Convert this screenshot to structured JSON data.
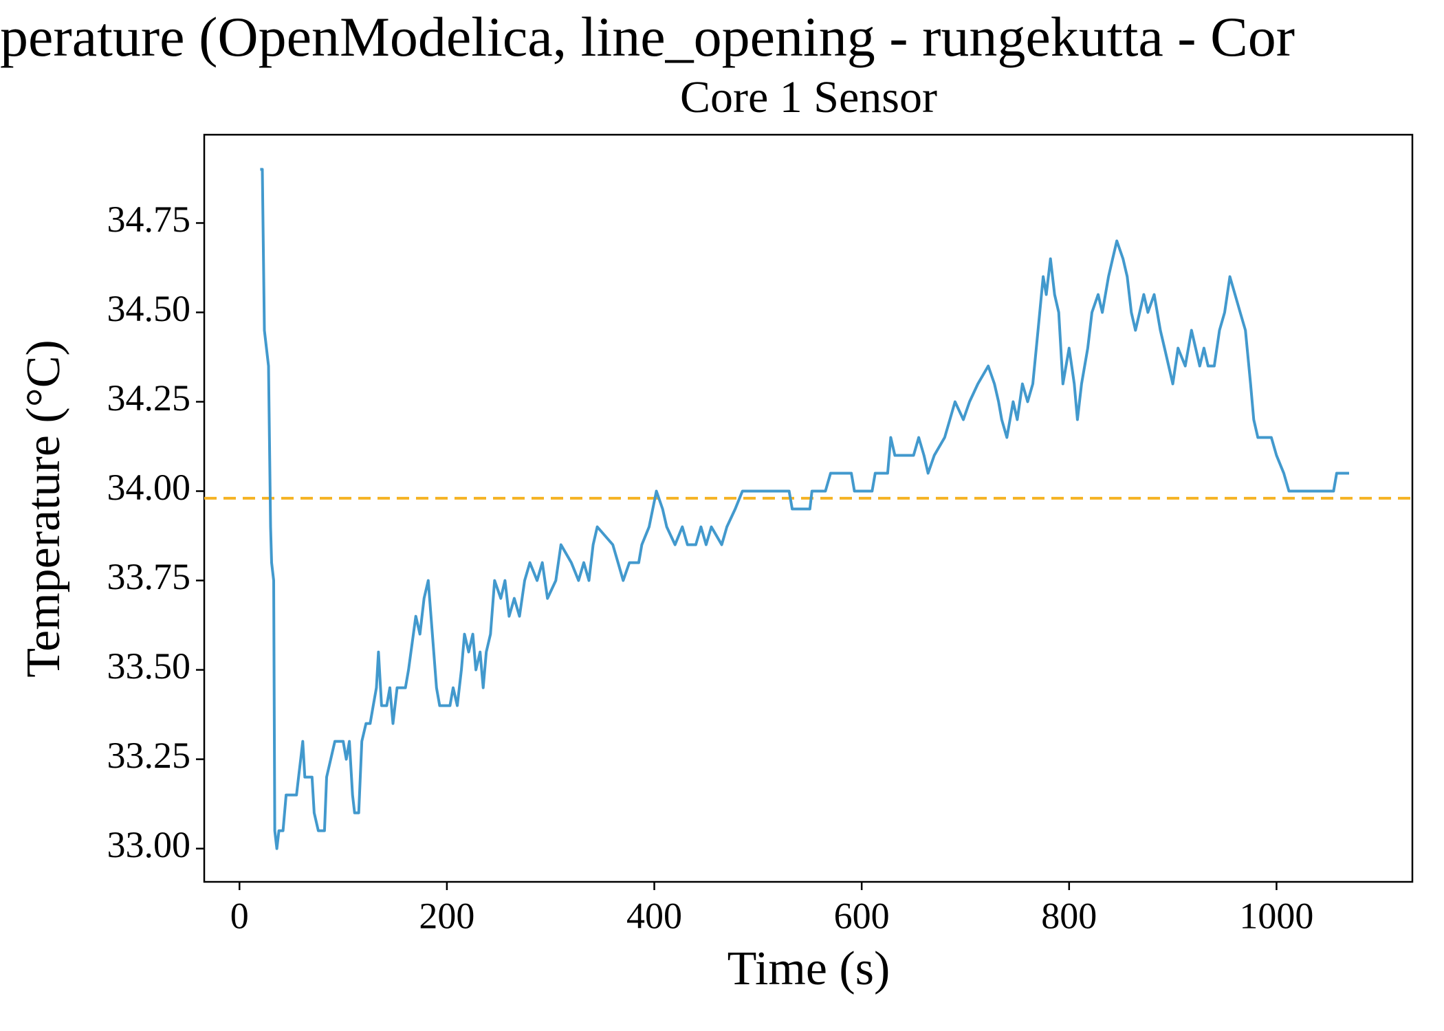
{
  "chart_data": {
    "type": "line",
    "title": "perature (OpenModelica, line_opening - rungekutta - Cor",
    "subtitle": "Core 1 Sensor",
    "xlabel": "Time (s)",
    "ylabel": "Temperature (°C)",
    "xlim": [
      -34,
      1131
    ],
    "ylim": [
      32.907,
      34.997
    ],
    "xticks": [
      0,
      200,
      400,
      600,
      800,
      1000
    ],
    "yticks": [
      {
        "value": 33,
        "label": "33.00"
      },
      33.25,
      {
        "value": 33.5,
        "label": "33.50"
      },
      33.75,
      {
        "value": 34,
        "label": "34.00"
      },
      34.25,
      {
        "value": 34.5,
        "label": "34.50"
      },
      34.75
    ],
    "reference_line": {
      "value": 33.98,
      "color": "#f5b323"
    },
    "series": [
      {
        "color": "#4299cd",
        "x": [
          20,
          22,
          24,
          26,
          28,
          30,
          31,
          33,
          34,
          36,
          38,
          42,
          45,
          55,
          57,
          59,
          61,
          63,
          70,
          72,
          76,
          82,
          84,
          88,
          92,
          100,
          103,
          106,
          109,
          111,
          115,
          118,
          122,
          126,
          129,
          132,
          134,
          137,
          142,
          145,
          148,
          152,
          157,
          160,
          163,
          170,
          174,
          178,
          182,
          186,
          190,
          193,
          203,
          206,
          210,
          214,
          217,
          221,
          225,
          228,
          232,
          235,
          238,
          242,
          246,
          252,
          256,
          260,
          265,
          270,
          275,
          280,
          287,
          292,
          297,
          305,
          310,
          320,
          327,
          332,
          337,
          341,
          345,
          360,
          365,
          370,
          376,
          385,
          388,
          395,
          402,
          408,
          412,
          420,
          427,
          432,
          440,
          445,
          450,
          455,
          465,
          470,
          478,
          485,
          530,
          533,
          550,
          552,
          565,
          570,
          590,
          593,
          610,
          613,
          625,
          628,
          632,
          650,
          655,
          660,
          664,
          670,
          680,
          685,
          690,
          698,
          704,
          712,
          722,
          728,
          732,
          735,
          740,
          746,
          750,
          755,
          760,
          765,
          770,
          775,
          778,
          782,
          786,
          790,
          794,
          797,
          800,
          805,
          808,
          812,
          818,
          822,
          828,
          832,
          838,
          842,
          846,
          852,
          856,
          860,
          864,
          868,
          872,
          876,
          882,
          888,
          892,
          896,
          900,
          905,
          912,
          918,
          922,
          926,
          930,
          934,
          940,
          945,
          950,
          955,
          960,
          965,
          970,
          975,
          978,
          982,
          995,
          1000,
          1007,
          1012,
          1055,
          1058,
          1070
        ],
        "values": [
          34.9,
          34.9,
          34.45,
          34.4,
          34.35,
          33.9,
          33.8,
          33.75,
          33.05,
          33.0,
          33.05,
          33.05,
          33.15,
          33.15,
          33.2,
          33.25,
          33.3,
          33.2,
          33.2,
          33.1,
          33.05,
          33.05,
          33.2,
          33.25,
          33.3,
          33.3,
          33.25,
          33.3,
          33.15,
          33.1,
          33.1,
          33.3,
          33.35,
          33.35,
          33.4,
          33.45,
          33.55,
          33.4,
          33.4,
          33.45,
          33.35,
          33.45,
          33.45,
          33.45,
          33.5,
          33.65,
          33.6,
          33.7,
          33.75,
          33.6,
          33.45,
          33.4,
          33.4,
          33.45,
          33.4,
          33.5,
          33.6,
          33.55,
          33.6,
          33.5,
          33.55,
          33.45,
          33.55,
          33.6,
          33.75,
          33.7,
          33.75,
          33.65,
          33.7,
          33.65,
          33.75,
          33.8,
          33.75,
          33.8,
          33.7,
          33.75,
          33.85,
          33.8,
          33.75,
          33.8,
          33.75,
          33.85,
          33.9,
          33.85,
          33.8,
          33.75,
          33.8,
          33.8,
          33.85,
          33.9,
          34.0,
          33.95,
          33.9,
          33.85,
          33.9,
          33.85,
          33.85,
          33.9,
          33.85,
          33.9,
          33.85,
          33.9,
          33.95,
          34.0,
          34.0,
          33.95,
          33.95,
          34.0,
          34.0,
          34.05,
          34.05,
          34.0,
          34.0,
          34.05,
          34.05,
          34.15,
          34.1,
          34.1,
          34.15,
          34.1,
          34.05,
          34.1,
          34.15,
          34.2,
          34.25,
          34.2,
          34.25,
          34.3,
          34.35,
          34.3,
          34.25,
          34.2,
          34.15,
          34.25,
          34.2,
          34.3,
          34.25,
          34.3,
          34.45,
          34.6,
          34.55,
          34.65,
          34.55,
          34.5,
          34.3,
          34.35,
          34.4,
          34.3,
          34.2,
          34.3,
          34.4,
          34.5,
          34.55,
          34.5,
          34.6,
          34.65,
          34.7,
          34.65,
          34.6,
          34.5,
          34.45,
          34.5,
          34.55,
          34.5,
          34.55,
          34.45,
          34.4,
          34.35,
          34.3,
          34.4,
          34.35,
          34.45,
          34.4,
          34.35,
          34.4,
          34.35,
          34.35,
          34.45,
          34.5,
          34.6,
          34.55,
          34.5,
          34.45,
          34.3,
          34.2,
          34.15,
          34.15,
          34.1,
          34.05,
          34.0,
          34.0,
          34.05,
          34.05
        ]
      }
    ]
  }
}
